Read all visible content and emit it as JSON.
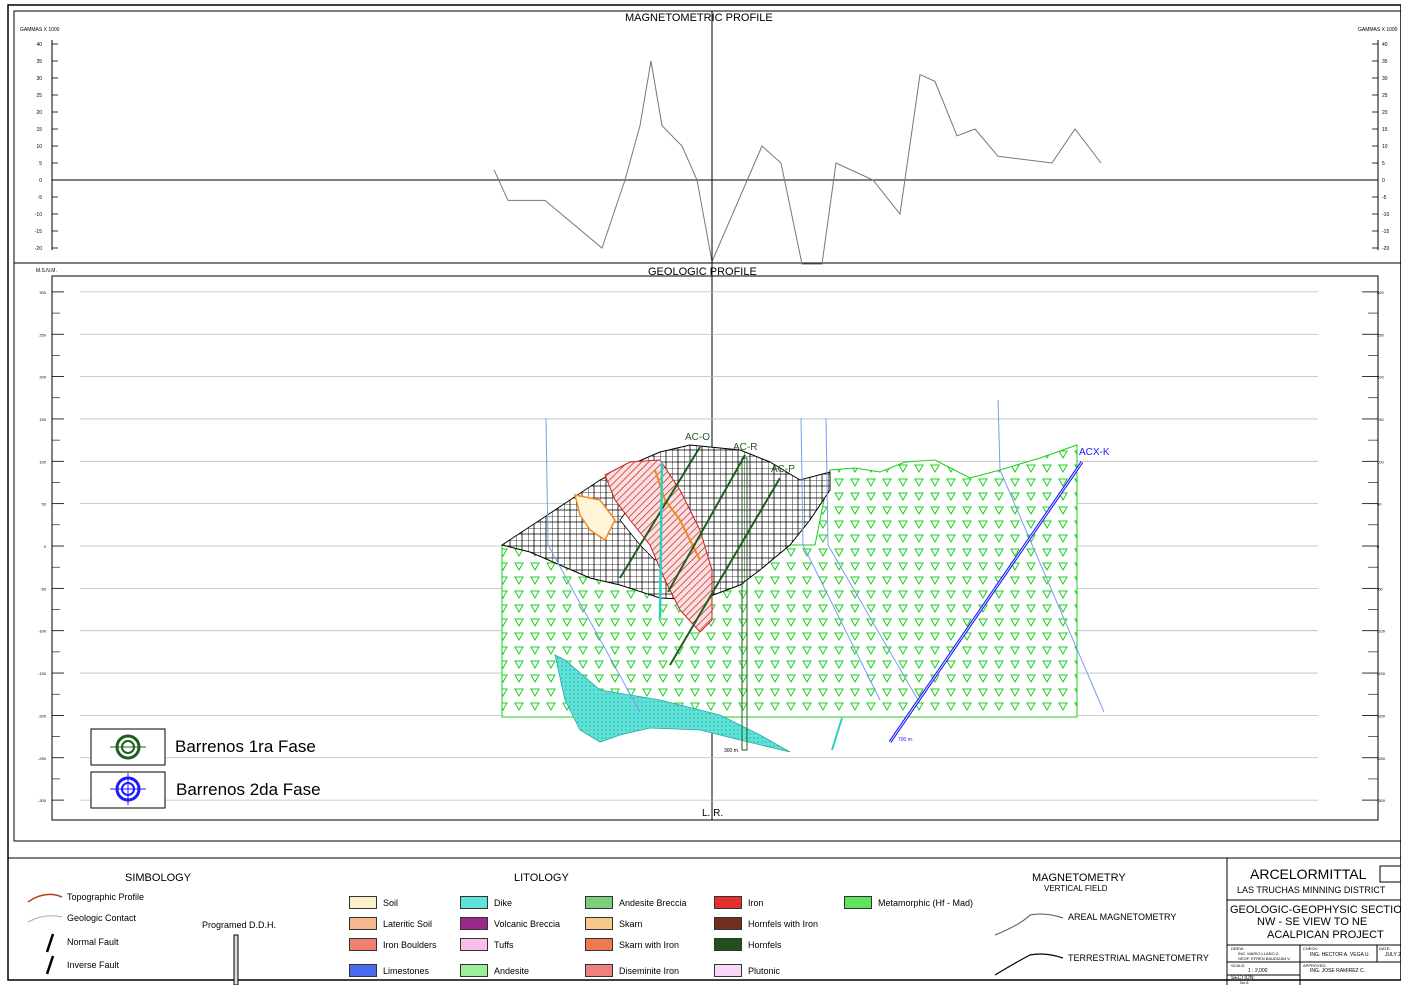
{
  "mag_profile": {
    "title": "MAGNETOMETRIC PROFILE",
    "unit_label": "GAMMAS X 1000",
    "y_ticks": [
      "40",
      "35",
      "30",
      "25",
      "20",
      "15",
      "10",
      "5",
      "0",
      "-5",
      "-10",
      "-15",
      "-20"
    ],
    "series": [
      {
        "x": 494,
        "y": 3
      },
      {
        "x": 508,
        "y": -6
      },
      {
        "x": 545,
        "y": -6
      },
      {
        "x": 602,
        "y": -20
      },
      {
        "x": 625,
        "y": 0
      },
      {
        "x": 640,
        "y": 16
      },
      {
        "x": 651,
        "y": 35
      },
      {
        "x": 662,
        "y": 16
      },
      {
        "x": 682,
        "y": 10
      },
      {
        "x": 697,
        "y": 0
      },
      {
        "x": 712,
        "y": -24
      },
      {
        "x": 762,
        "y": 10
      },
      {
        "x": 781,
        "y": 5
      },
      {
        "x": 802,
        "y": -25
      },
      {
        "x": 822,
        "y": -25
      },
      {
        "x": 836,
        "y": 5
      },
      {
        "x": 873,
        "y": 0
      },
      {
        "x": 900,
        "y": -10
      },
      {
        "x": 920,
        "y": 31
      },
      {
        "x": 935,
        "y": 29
      },
      {
        "x": 957,
        "y": 13
      },
      {
        "x": 975,
        "y": 15
      },
      {
        "x": 998,
        "y": 7
      },
      {
        "x": 1052,
        "y": 5
      },
      {
        "x": 1075,
        "y": 15
      },
      {
        "x": 1101,
        "y": 5
      }
    ]
  },
  "geo_profile": {
    "title": "GEOLOGIC PROFILE",
    "unit_label": "M.S.N.M.",
    "y_ticks": [
      "300",
      "250",
      "200",
      "150",
      "100",
      "50",
      "0",
      "-50",
      "-100",
      "-150",
      "-200",
      "-250",
      "-300"
    ],
    "lr_label": "L. R.",
    "drill_labels": [
      "AC-O",
      "AC-R",
      "AC-P",
      "ACX-K"
    ],
    "depth_labels": [
      "300 m.",
      "700 m."
    ],
    "legend": [
      {
        "label": "Barrenos 1ra Fase",
        "color": "#1e5e1e"
      },
      {
        "label": "Barrenos 2da Fase",
        "color": "#1a1aff"
      }
    ]
  },
  "simbology": {
    "title": "SIMBOLOGY",
    "items": [
      "Topographic Profile",
      "Geologic Contact",
      "Normal Fault",
      "Inverse Fault"
    ],
    "programed": "Programed D.D.H."
  },
  "litology": {
    "title": "LITOLOGY",
    "items": [
      {
        "label": "Soil",
        "color": "#fdf0c8"
      },
      {
        "label": "Lateritic Soil",
        "color": "#f4b88c"
      },
      {
        "label": "Iron Boulders",
        "color": "#f08070"
      },
      {
        "label": "Limestones",
        "color": "#4a6cf0"
      },
      {
        "label": "Dike",
        "color": "#5fe3d8"
      },
      {
        "label": "Volcanic Breccia",
        "color": "#9a2a8a"
      },
      {
        "label": "Tuffs",
        "color": "#f8c0e8"
      },
      {
        "label": "Andesite",
        "color": "#9af09a"
      },
      {
        "label": "Andesite Breccia",
        "color": "#7ad07a"
      },
      {
        "label": "Skarn",
        "color": "#f6c98a"
      },
      {
        "label": "Skarn with Iron",
        "color": "#f07a50"
      },
      {
        "label": "Diseminite Iron",
        "color": "#f08080"
      },
      {
        "label": "Iron",
        "color": "#e03030"
      },
      {
        "label": "Hornfels with Iron",
        "color": "#703020"
      },
      {
        "label": "Hornfels",
        "color": "#205020"
      },
      {
        "label": "Plutonic",
        "color": "#f8d8f8"
      },
      {
        "label": "Metamorphic (Hf - Mad)",
        "color": "#5fe35f"
      }
    ]
  },
  "magnetometry": {
    "title": "MAGNETOMETRY",
    "subtitle": "VERTICAL FIELD",
    "items": [
      "AREAL MAGNETOMETRY",
      "TERRESTRIAL MAGNETOMETRY"
    ]
  },
  "title_block": {
    "company": "ARCELORMITTAL",
    "district": "LAS TRUCHAS MINNING DISTRICT",
    "title_line1": "GEOLOGIC-GEOPHYSIC SECTIO",
    "title_line2": "NW - SE  VIEW TO  NE",
    "title_line3": "ACALPICAN PROJECT",
    "drew_label": "DREW:",
    "drew_names": "ING. MARIO LLANO Z.",
    "drew_names2": "GEOF. EFREN BAUDIZAN V.",
    "check_label": "CHECK:",
    "check_name": "ING. HECTOR A. VEGA U.",
    "date_label": "DATE:",
    "date_value": "JULY 2",
    "scale_label": "SCALE:",
    "scale_value": "1 : 2,000",
    "approved_label": "APPROVED:",
    "approved_name": "ING. JOSE RAMIREZ C.",
    "section_label": "SECTION:",
    "section_value": "No.8"
  }
}
